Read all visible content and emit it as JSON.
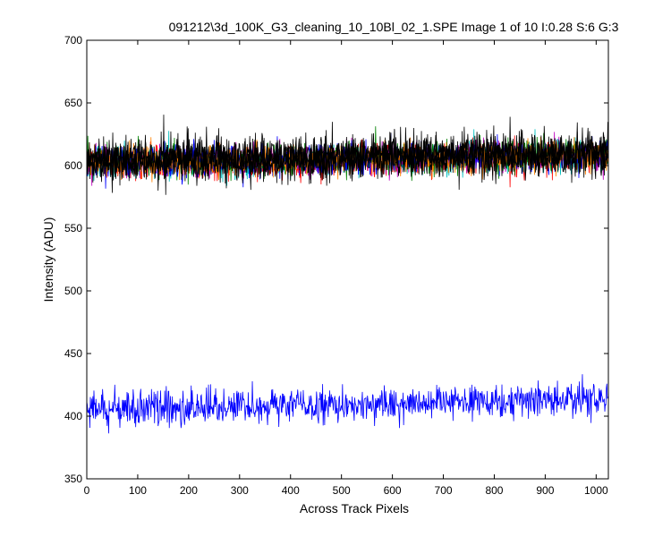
{
  "chart_data": {
    "type": "line",
    "title": "091212\\3d_100K_G3_cleaning_10_10Bl_02_1.SPE  Image 1 of 10  I:0.28  S:6  G:3",
    "xlabel": "Across Track Pixels",
    "ylabel": "Intensity (ADU)",
    "xlim": [
      0,
      1024
    ],
    "ylim": [
      350,
      700
    ],
    "xticks": [
      0,
      100,
      200,
      300,
      400,
      500,
      600,
      700,
      800,
      900,
      1000
    ],
    "yticks": [
      350,
      400,
      450,
      500,
      550,
      600,
      650,
      700
    ],
    "grid": false,
    "legend": "none",
    "n_points": 1024,
    "series": [
      {
        "color": "#000000",
        "baseline_start": 603,
        "baseline_end": 610,
        "noise": 8,
        "z": 9
      },
      {
        "color": "#ff0000",
        "baseline_start": 601,
        "baseline_end": 607,
        "noise": 6,
        "z": 1
      },
      {
        "color": "#00bfbf",
        "baseline_start": 601,
        "baseline_end": 607,
        "noise": 6,
        "z": 2
      },
      {
        "color": "#bf00bf",
        "baseline_start": 602,
        "baseline_end": 608,
        "noise": 6,
        "z": 3
      },
      {
        "color": "#008000",
        "baseline_start": 602,
        "baseline_end": 609,
        "noise": 6,
        "z": 4
      },
      {
        "color": "#0000ff",
        "baseline_start": 602,
        "baseline_end": 608,
        "noise": 6,
        "z": 5
      },
      {
        "color": "#ff8000",
        "baseline_start": 602,
        "baseline_end": 608,
        "noise": 6,
        "z": 6
      },
      {
        "color": "#000000",
        "baseline_start": 604,
        "baseline_end": 611,
        "noise": 8,
        "z": 7
      },
      {
        "color": "#000000",
        "baseline_start": 603,
        "baseline_end": 610,
        "noise": 8,
        "z": 8
      },
      {
        "color": "#0000ff",
        "baseline_start": 405,
        "baseline_end": 414,
        "noise": 7,
        "z": 10
      }
    ],
    "seed": 12345
  }
}
